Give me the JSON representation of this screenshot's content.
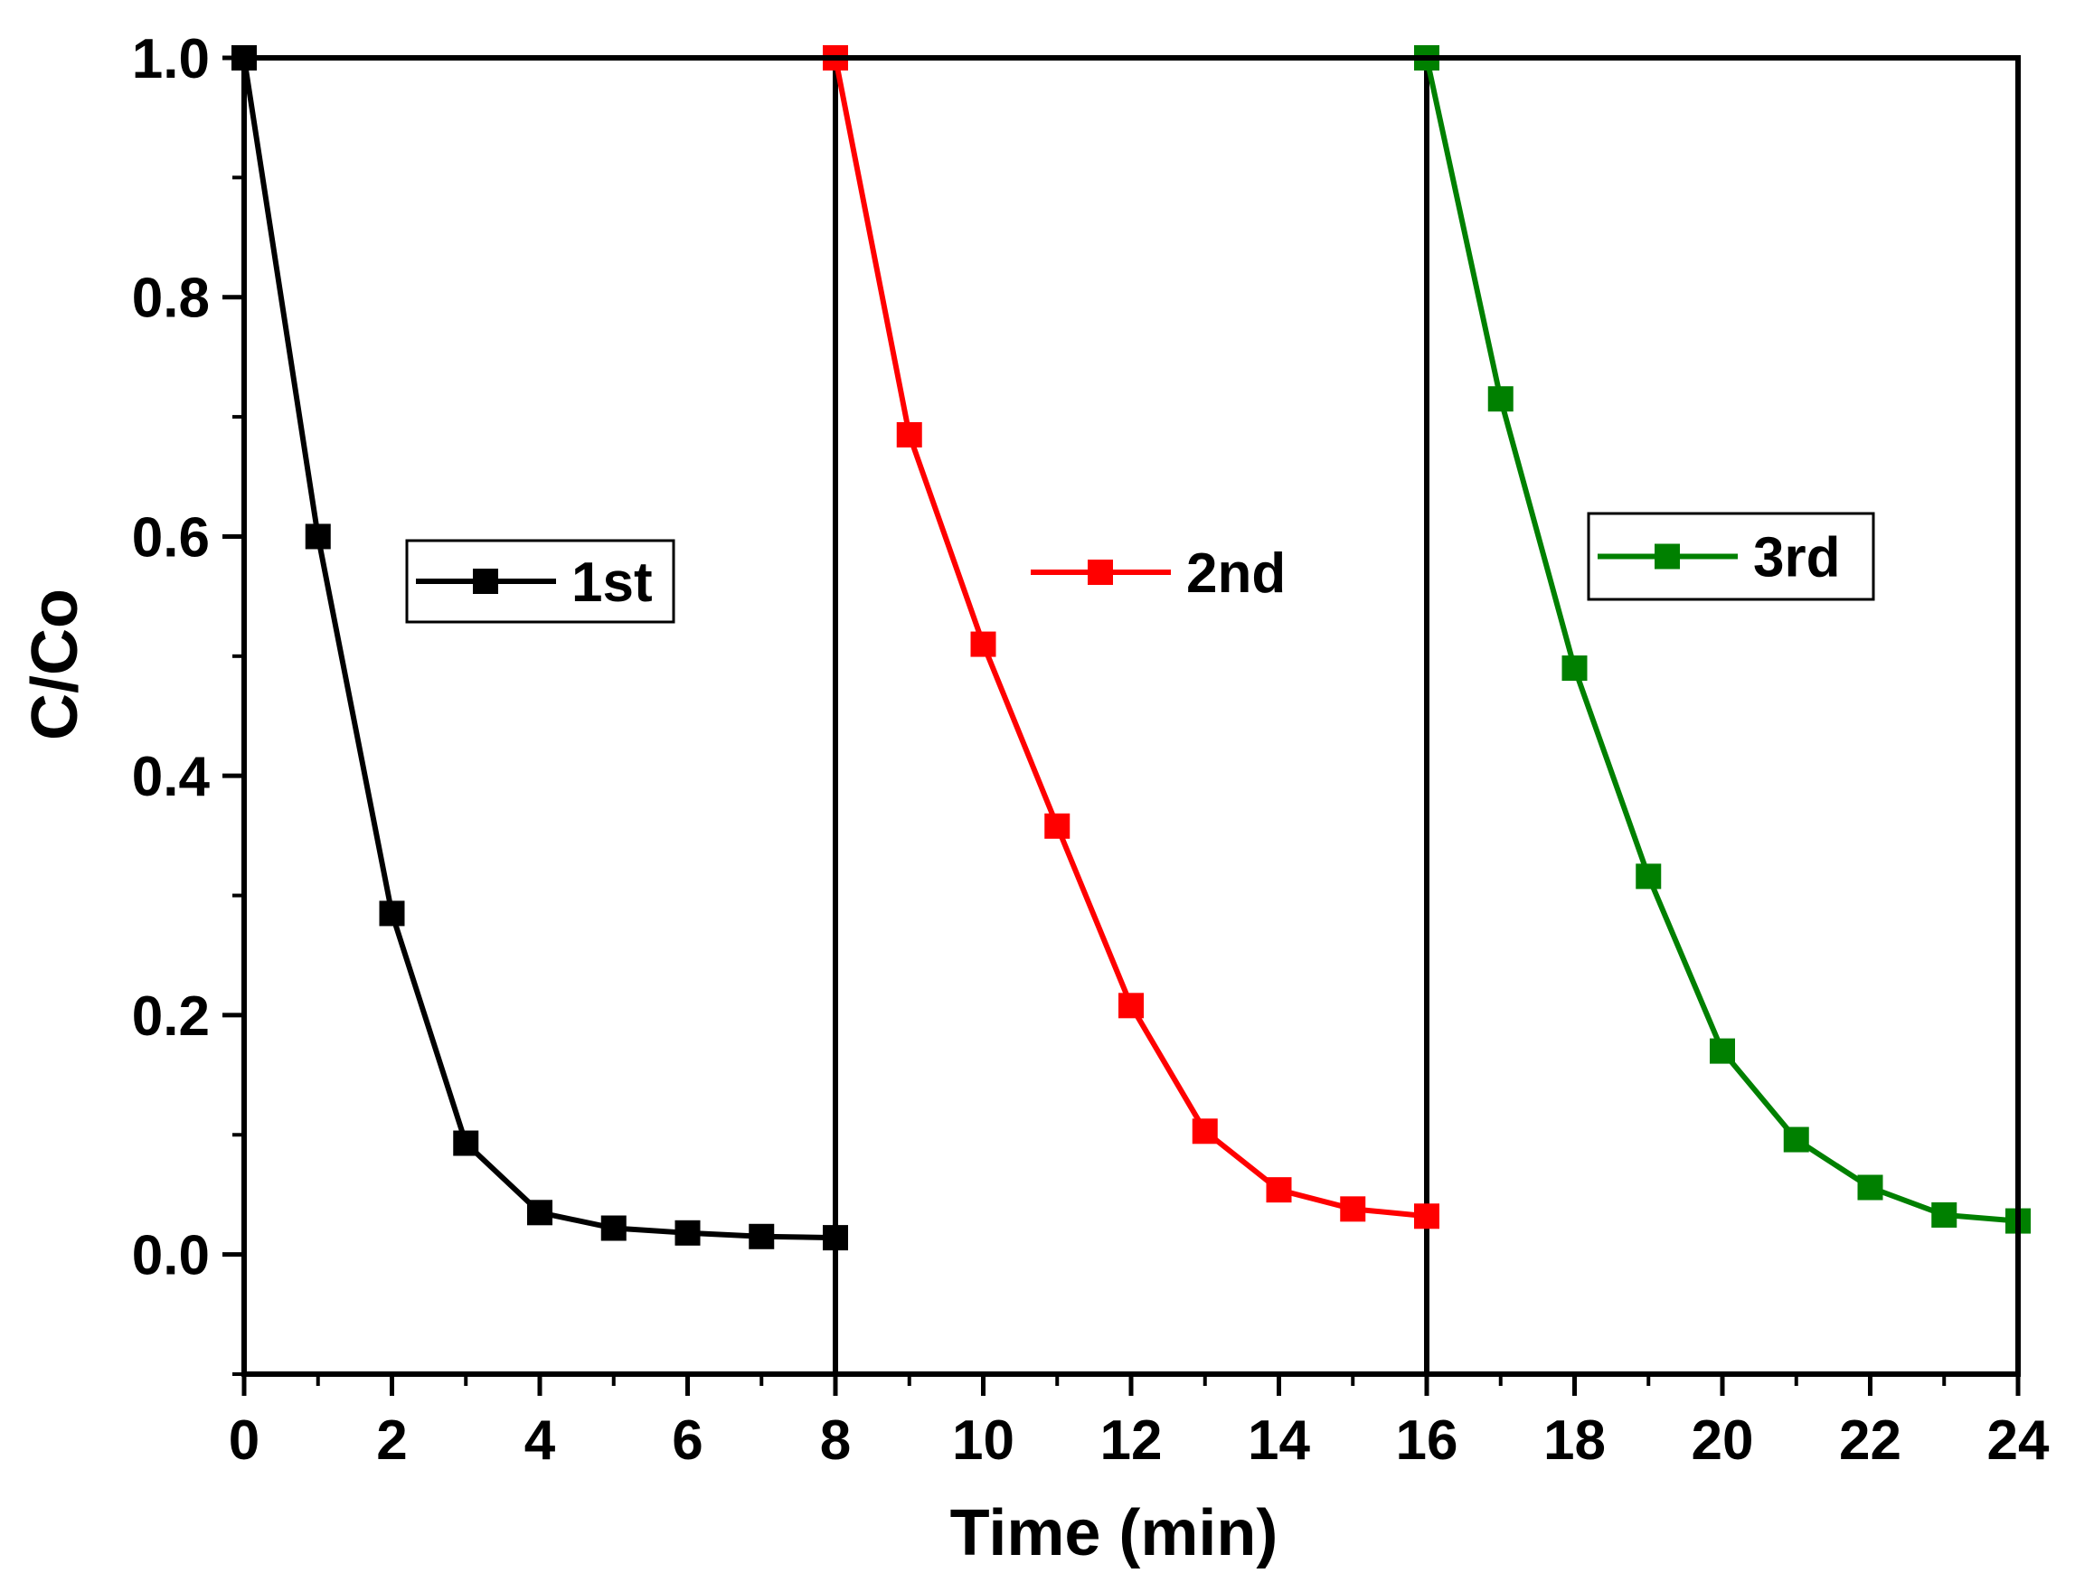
{
  "chart_data": {
    "type": "line",
    "title": "",
    "xlabel": "Time (min)",
    "ylabel": "C/Co",
    "xlim": [
      0,
      24
    ],
    "ylim": [
      -0.1,
      1.0
    ],
    "x_ticks": [
      "0",
      "2",
      "4",
      "6",
      "8",
      "10",
      "12",
      "14",
      "16",
      "18",
      "20",
      "22",
      "24"
    ],
    "y_ticks": [
      "0.0",
      "0.2",
      "0.4",
      "0.6",
      "0.8",
      "1.0"
    ],
    "cycle_dividers": [
      8,
      16
    ],
    "series": [
      {
        "name": "1st",
        "color": "#000000",
        "x": [
          0,
          1,
          2,
          3,
          4,
          5,
          6,
          7,
          8
        ],
        "y": [
          1.0,
          0.6,
          0.285,
          0.093,
          0.035,
          0.022,
          0.018,
          0.015,
          0.014
        ]
      },
      {
        "name": "2nd",
        "color": "#ff0000",
        "x": [
          8,
          9,
          10,
          11,
          12,
          13,
          14,
          15,
          16
        ],
        "y": [
          1.0,
          0.685,
          0.51,
          0.358,
          0.208,
          0.103,
          0.054,
          0.038,
          0.032
        ]
      },
      {
        "name": "3rd",
        "color": "#008000",
        "x": [
          16,
          17,
          18,
          19,
          20,
          21,
          22,
          23,
          24
        ],
        "y": [
          1.0,
          0.715,
          0.49,
          0.316,
          0.17,
          0.096,
          0.056,
          0.033,
          0.028
        ]
      }
    ]
  }
}
